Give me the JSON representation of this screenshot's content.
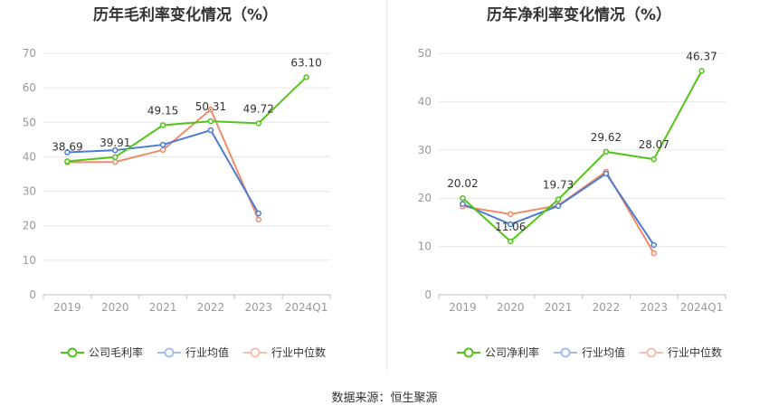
{
  "colors": {
    "company": "#52c41a",
    "industry_avg": "#4a7bd4",
    "industry_median": "#f08b6a",
    "grid": "#e6e6e6",
    "axis_text": "#999999",
    "label_text": "#333333"
  },
  "source": "数据来源：恒生聚源",
  "chart_data": [
    {
      "type": "line",
      "title": "历年毛利率变化情况（%）",
      "categories": [
        "2019",
        "2020",
        "2021",
        "2022",
        "2023",
        "2024Q1"
      ],
      "ylim": [
        0,
        70
      ],
      "yticks": [
        "0",
        "10",
        "20",
        "30",
        "40",
        "50",
        "60",
        "70"
      ],
      "series": [
        {
          "name": "公司毛利率",
          "key": "company",
          "values": [
            38.69,
            39.91,
            49.15,
            50.31,
            49.72,
            63.1
          ],
          "labels": [
            "38.69",
            "39.91",
            "49.15",
            "50.31",
            "49.72",
            "63.10"
          ]
        },
        {
          "name": "行业均值",
          "key": "industry_avg",
          "values": [
            41.3,
            41.9,
            43.5,
            47.7,
            23.6,
            null
          ]
        },
        {
          "name": "行业中位数",
          "key": "industry_median",
          "values": [
            38.4,
            38.5,
            42.0,
            53.7,
            21.8,
            null
          ]
        }
      ]
    },
    {
      "type": "line",
      "title": "历年净利率变化情况（%）",
      "categories": [
        "2019",
        "2020",
        "2021",
        "2022",
        "2023",
        "2024Q1"
      ],
      "ylim": [
        0,
        50
      ],
      "yticks": [
        "0",
        "10",
        "20",
        "30",
        "40",
        "50"
      ],
      "series": [
        {
          "name": "公司净利率",
          "key": "company",
          "values": [
            20.02,
            11.06,
            19.73,
            29.62,
            28.07,
            46.37
          ],
          "labels": [
            "20.02",
            "11.06",
            "19.73",
            "29.62",
            "28.07",
            "46.37"
          ]
        },
        {
          "name": "行业均值",
          "key": "industry_avg",
          "values": [
            18.8,
            14.6,
            18.4,
            25.1,
            10.3,
            null
          ]
        },
        {
          "name": "行业中位数",
          "key": "industry_median",
          "values": [
            18.3,
            16.7,
            18.5,
            25.5,
            8.6,
            null
          ]
        }
      ]
    }
  ]
}
